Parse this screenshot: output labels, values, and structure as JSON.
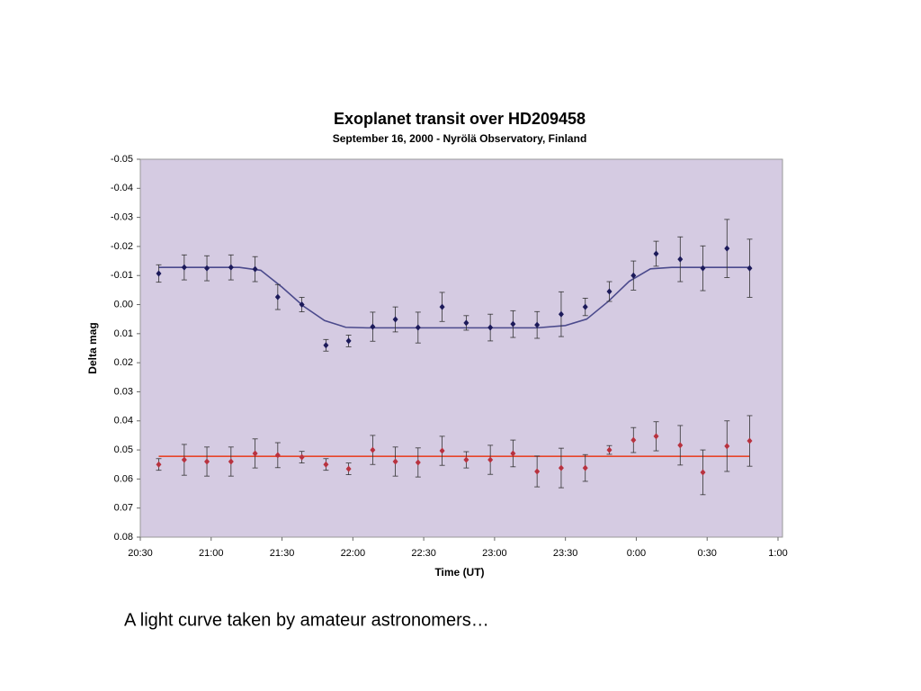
{
  "chart_data": {
    "type": "scatter",
    "title": "Exoplanet transit over HD209458",
    "subtitle": "September 16, 2000 - Nyrölä Observatory, Finland",
    "xlabel": "Time (UT)",
    "ylabel": "Delta mag",
    "xlim": [
      20.5,
      25
    ],
    "xticks": [
      {
        "value": 20.5,
        "label": "20:30"
      },
      {
        "value": 21,
        "label": "21:00"
      },
      {
        "value": 21.5,
        "label": "21:30"
      },
      {
        "value": 22,
        "label": "22:00"
      },
      {
        "value": 22.5,
        "label": "22:30"
      },
      {
        "value": 23,
        "label": "23:00"
      },
      {
        "value": 23.5,
        "label": "23:30"
      },
      {
        "value": 24,
        "label": "0:00"
      },
      {
        "value": 24.5,
        "label": "0:30"
      },
      {
        "value": 25,
        "label": "1:00"
      }
    ],
    "ylim": [
      -0.05,
      0.08
    ],
    "y_inverted": true,
    "yticks": [
      -0.05,
      -0.04,
      -0.03,
      -0.02,
      -0.01,
      {
        "value": 0,
        "label": "0.00"
      },
      0.01,
      0.02,
      0.03,
      0.04,
      0.05,
      0.06,
      0.07,
      0.08
    ],
    "plot_background": "#d5cbe2",
    "series": [
      {
        "color": "#1c1a5a",
        "x": [
          20.63,
          20.81,
          20.97,
          21.14,
          21.31,
          21.47,
          21.64,
          21.81,
          21.97,
          22.14,
          22.3,
          22.46,
          22.63,
          22.8,
          22.97,
          23.13,
          23.3,
          23.47,
          23.64,
          23.81,
          23.98,
          24.14,
          24.31,
          24.47,
          24.64,
          24.8
        ],
        "values": [
          -0.0107,
          -0.0128,
          -0.0125,
          -0.0128,
          -0.0122,
          -0.0026,
          0.0,
          0.014,
          0.0125,
          0.0076,
          0.0051,
          0.0079,
          0.0008,
          0.0063,
          0.0079,
          0.0067,
          0.007,
          0.0033,
          0.0008,
          -0.0045,
          -0.01,
          -0.0175,
          -0.0156,
          -0.0125,
          -0.0193,
          -0.0125
        ],
        "errors": [
          0.003,
          0.0043,
          0.0043,
          0.0043,
          0.0043,
          0.0043,
          0.0025,
          0.002,
          0.002,
          0.005,
          0.0043,
          0.0053,
          0.005,
          0.0025,
          0.0046,
          0.0046,
          0.0046,
          0.0077,
          0.003,
          0.0034,
          0.005,
          0.0043,
          0.0077,
          0.0077,
          0.01,
          0.01
        ]
      },
      {
        "color": "#b8323f",
        "x": [
          20.63,
          20.81,
          20.97,
          21.14,
          21.31,
          21.47,
          21.64,
          21.81,
          21.97,
          22.14,
          22.3,
          22.46,
          22.63,
          22.8,
          22.97,
          23.13,
          23.3,
          23.47,
          23.64,
          23.81,
          23.98,
          24.14,
          24.31,
          24.47,
          24.64,
          24.8
        ],
        "values": [
          0.055,
          0.0534,
          0.054,
          0.054,
          0.0512,
          0.0518,
          0.0525,
          0.055,
          0.0565,
          0.05,
          0.054,
          0.0543,
          0.0503,
          0.0534,
          0.0534,
          0.0512,
          0.0574,
          0.0562,
          0.0562,
          0.05,
          0.0466,
          0.0453,
          0.0484,
          0.0577,
          0.0487,
          0.0469
        ],
        "errors": [
          0.002,
          0.0053,
          0.005,
          0.005,
          0.005,
          0.0043,
          0.002,
          0.002,
          0.002,
          0.005,
          0.005,
          0.005,
          0.005,
          0.0028,
          0.005,
          0.0046,
          0.0053,
          0.0068,
          0.0046,
          0.0015,
          0.0043,
          0.005,
          0.0068,
          0.0077,
          0.0087,
          0.0087
        ]
      }
    ],
    "fits": [
      {
        "color": "#4b4a8c",
        "x": [
          20.63,
          21.2,
          21.35,
          21.5,
          21.65,
          21.8,
          21.95,
          22.1,
          23.3,
          23.5,
          23.65,
          23.8,
          23.95,
          24.1,
          24.25,
          24.8
        ],
        "values": [
          -0.0128,
          -0.0128,
          -0.0118,
          -0.006,
          0.0005,
          0.0055,
          0.0078,
          0.008,
          0.008,
          0.0072,
          0.005,
          -0.001,
          -0.008,
          -0.0123,
          -0.0128,
          -0.0128
        ]
      },
      {
        "color": "#e8452a",
        "x": [
          20.63,
          24.8
        ],
        "values": [
          0.0522,
          0.0522
        ]
      }
    ]
  },
  "caption": "A light curve taken by amateur astronomers…"
}
